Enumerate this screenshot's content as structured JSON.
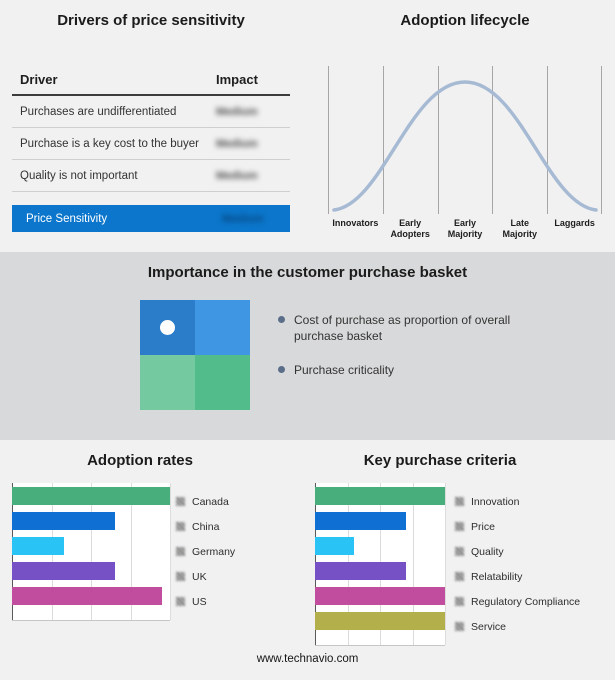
{
  "footer": {
    "text": "www.technavio.com"
  },
  "basket_panel": {
    "title": "Importance in the customer purchase basket",
    "bullets": [
      "Cost of purchase as proportion of overall purchase basket",
      "Purchase criticality"
    ],
    "quadrant_colors": [
      "#2b7cc9",
      "#3f97e4",
      "#74c9a0",
      "#52bd8b"
    ],
    "dot_color": "#ffffff",
    "bullet_color": "#5a6d89"
  },
  "chart_data": [
    {
      "type": "table",
      "title": "Drivers of price sensitivity",
      "columns": [
        "Driver",
        "Impact"
      ],
      "rows": [
        [
          "Purchases are undifferentiated",
          "Medium"
        ],
        [
          "Purchase is a key cost to the buyer",
          "Medium"
        ],
        [
          "Quality is not important",
          "Medium"
        ]
      ],
      "highlight_row": [
        "Price Sensitivity",
        "Medium"
      ],
      "highlight_color": "#0b76cb",
      "impact_values_blurred": true
    },
    {
      "type": "area",
      "title": "Adoption lifecycle",
      "curve": "bell",
      "categories": [
        "Innovators",
        "Early Adopters",
        "Early Majority",
        "Late Majority",
        "Laggards"
      ],
      "values": [
        8,
        45,
        100,
        45,
        8
      ],
      "curve_color": "#a7bad3",
      "gridlines": true
    },
    {
      "type": "bar",
      "orientation": "horizontal",
      "title": "Adoption rates",
      "categories": [
        "Canada",
        "China",
        "Germany",
        "UK",
        "US"
      ],
      "values": [
        100,
        65,
        33,
        65,
        95
      ],
      "value_note": "relative bar lengths as percent of axis; no numeric labels shown",
      "colors": [
        "#47ae7c",
        "#0f6fd3",
        "#29c4f5",
        "#7551c5",
        "#c14d9f"
      ],
      "legend_position": "right",
      "gridlines": true
    },
    {
      "type": "bar",
      "orientation": "horizontal",
      "title": "Key purchase criteria",
      "categories": [
        "Innovation",
        "Price",
        "Quality",
        "Relatability",
        "Regulatory Compliance",
        "Service"
      ],
      "values": [
        100,
        70,
        30,
        70,
        100,
        100
      ],
      "value_note": "relative bar lengths as percent of axis; no numeric labels shown",
      "colors": [
        "#47ae7c",
        "#0f6fd3",
        "#29c4f5",
        "#7551c5",
        "#c14d9f",
        "#b3b04b"
      ],
      "legend_position": "right",
      "gridlines": true
    }
  ]
}
